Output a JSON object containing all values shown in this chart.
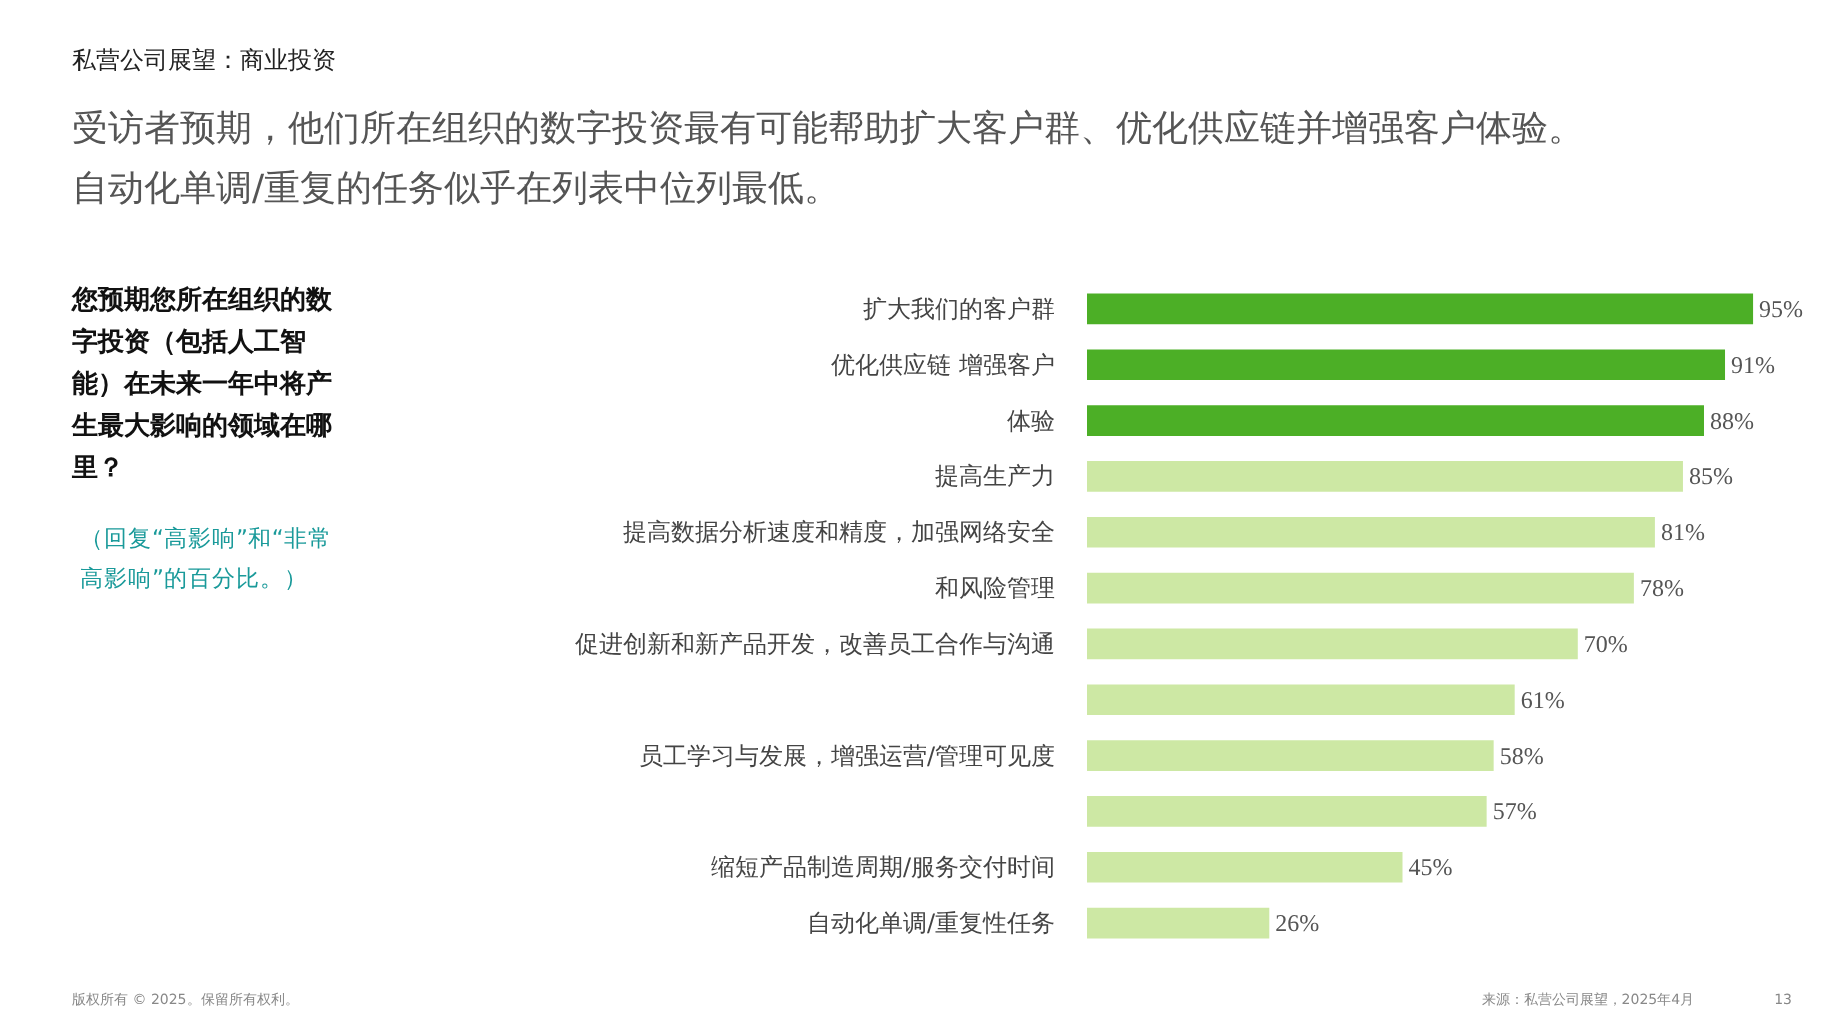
{
  "chart_data": {
    "type": "bar",
    "orientation": "horizontal",
    "title": "受访者预期，他们所在组织的数字投资最有可能帮助扩大客户群、优化供应链并增强客户体验。自动化单调/重复的任务似乎在列表中位列最低。",
    "subtitle": "您预期您所在组织的数字投资（包括人工智能）在未来一年中将产生最大影响的领域在哪里？",
    "annotations": [
      "私营公司展望：商业投资",
      "（回复“高影响”和“非常高影响”的百分比。）",
      "版权所有 © 2025。保留所有权利。",
      "来源：私营公司展望，2025年4月",
      "13"
    ],
    "categories": [
      "扩大我们的客户群",
      "优化供应链 增强客户",
      "体验",
      "提高生产力",
      "提高数据分析速度和精度，加强网络安全",
      "和风险管理",
      "促进创新和新产品开发，改善员工合作与沟通",
      null,
      "员工学习与发展，增强运营/管理可见度",
      null,
      "缩短产品制造周期/服务交付时间",
      "自动化单调/重复性任务"
    ],
    "values": [
      95,
      91,
      88,
      85,
      81,
      78,
      70,
      61,
      58,
      57,
      45,
      26
    ],
    "value_labels": [
      "95%",
      "91%",
      "88%",
      "85%",
      "81%",
      "78%",
      "70%",
      "61%",
      "58%",
      "57%",
      "45%",
      "26%"
    ],
    "colors": [
      "#4caf26",
      "#4caf26",
      "#4caf26",
      "#cde8a4",
      "#cde8a4",
      "#cde8a4",
      "#cde8a4",
      "#cde8a4",
      "#cde8a4",
      "#cde8a4",
      "#cde8a4",
      "#cde8a4"
    ]
  }
}
